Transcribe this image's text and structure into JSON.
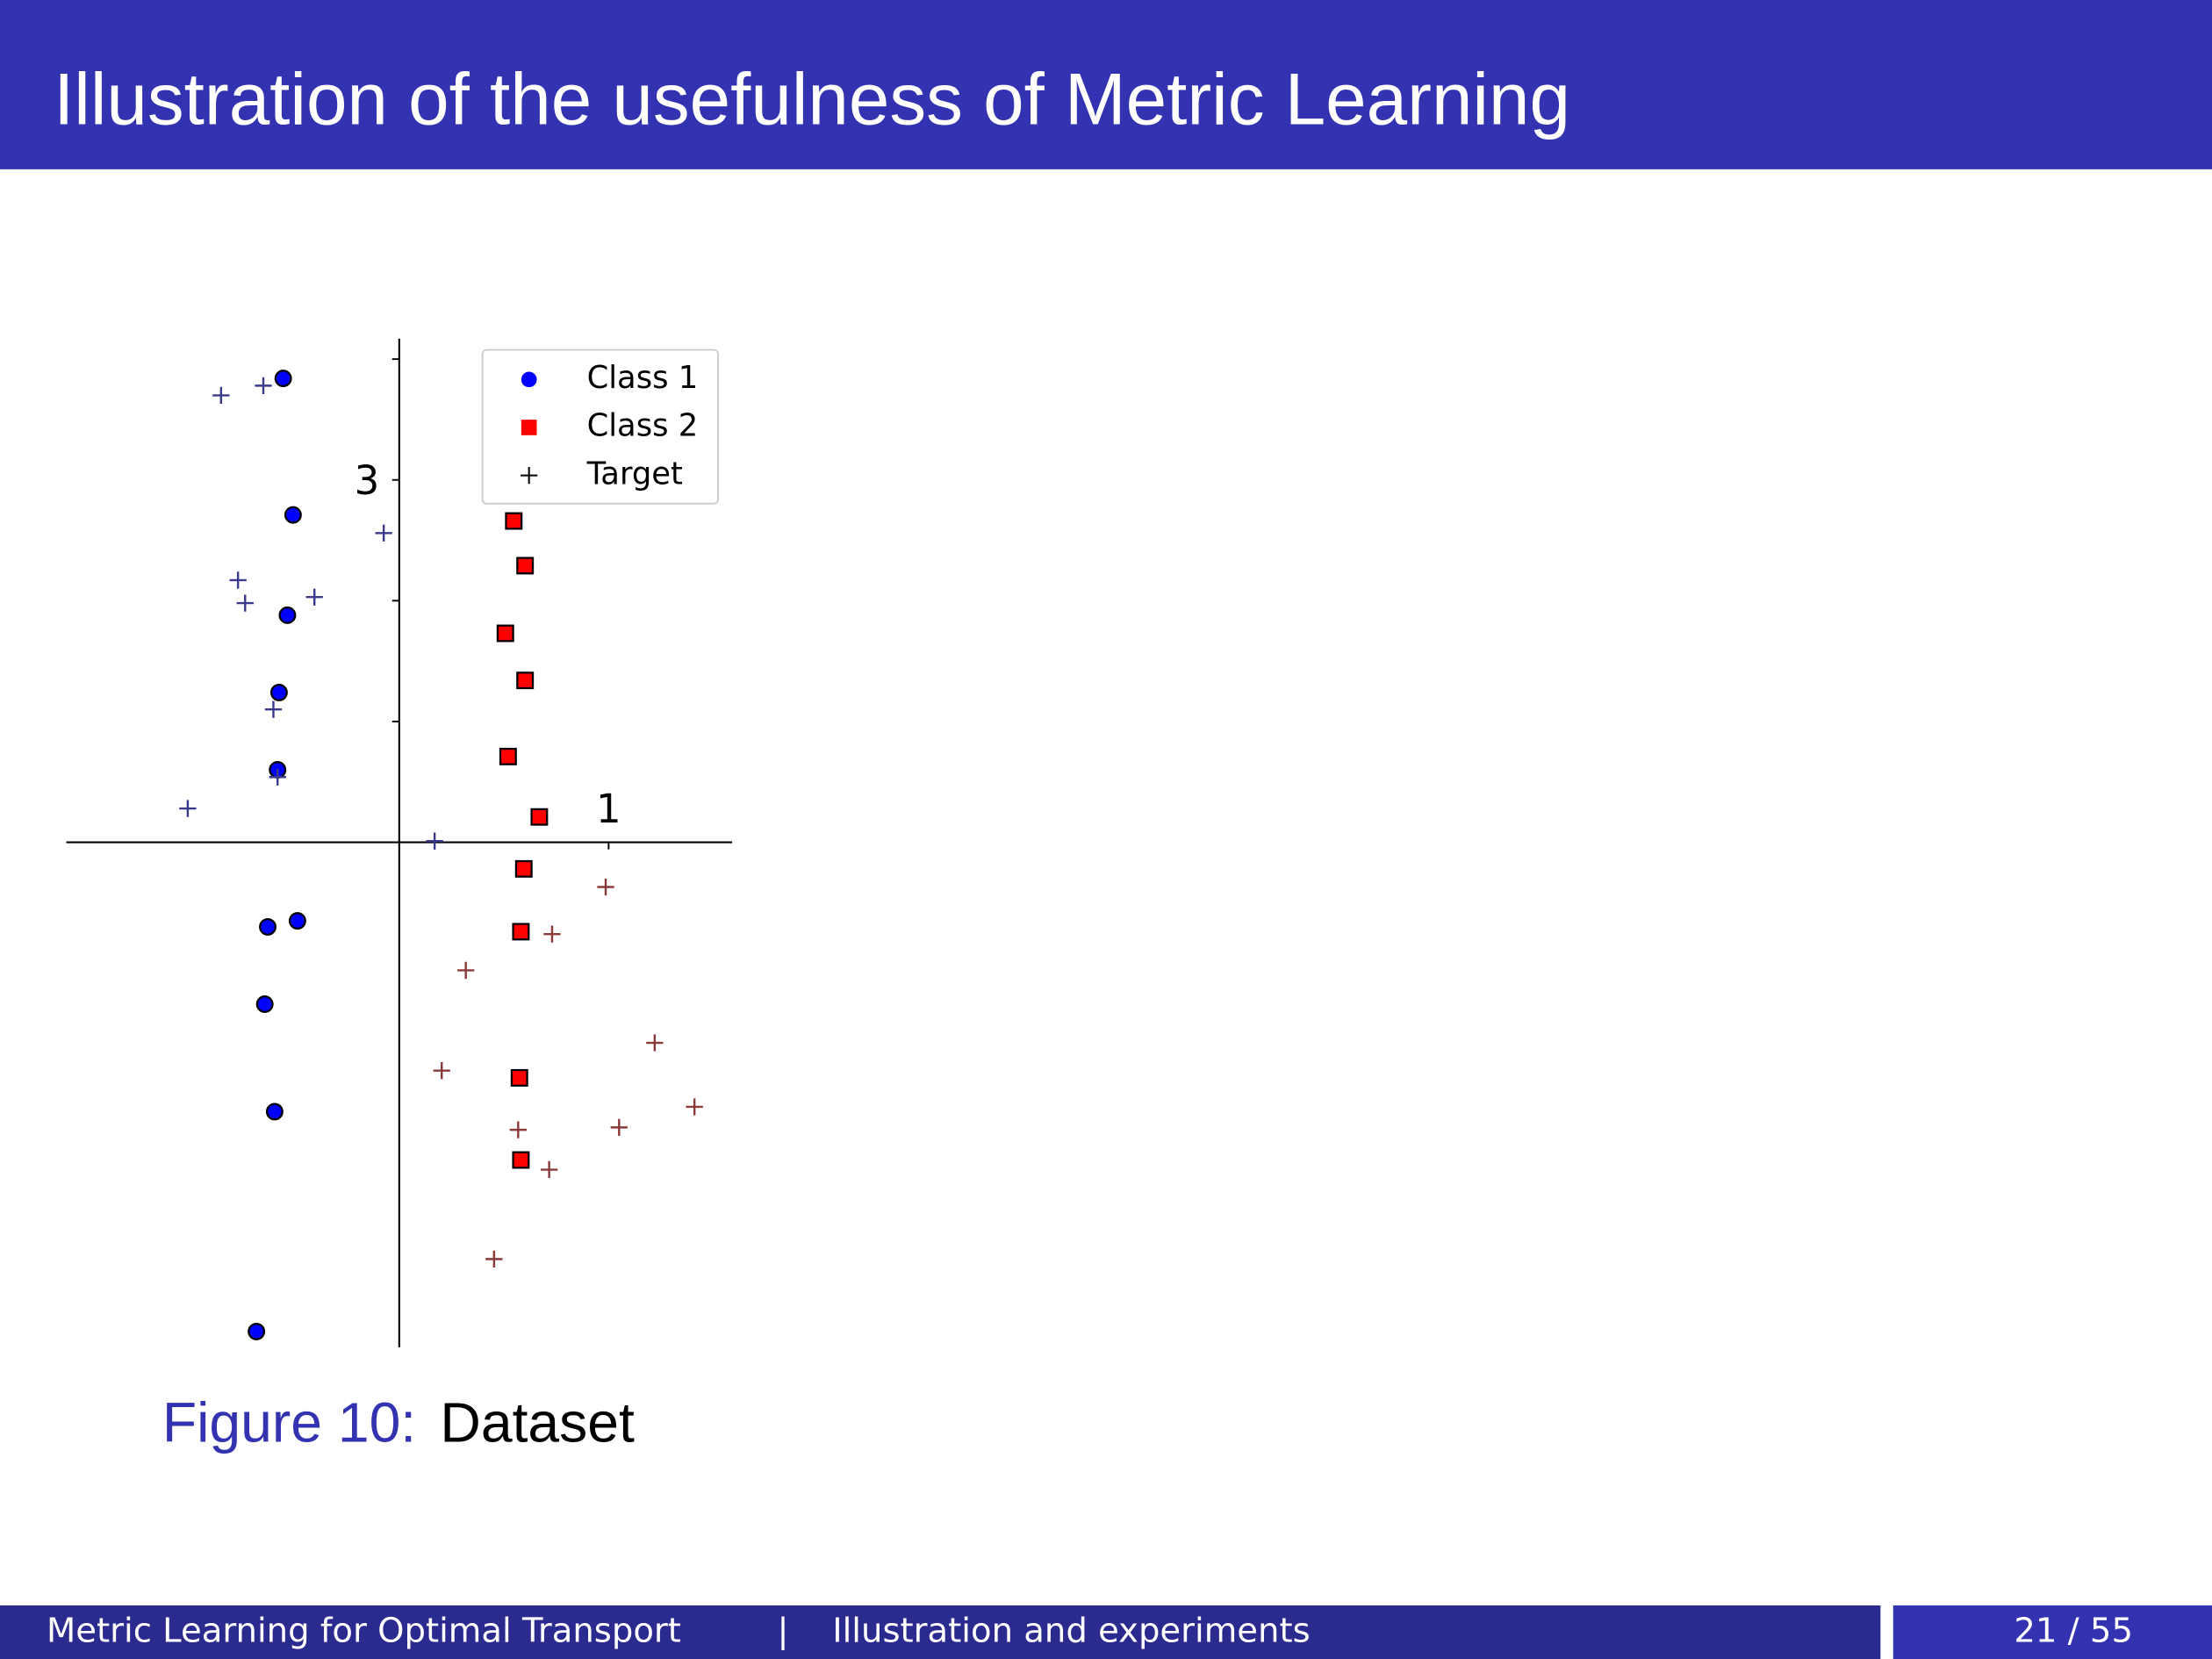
{
  "slide": {
    "title": "Illustration of the usefulness of Metric Learning",
    "caption_label": "Figure 10:",
    "caption_text": "Dataset",
    "footer_left": "Metric Learning for Optimal Transport",
    "footer_separator": "|",
    "footer_section": "Illustration and experiments",
    "footer_page": "21 / 55"
  },
  "chart_data": {
    "type": "scatter",
    "xlim": [
      -1.59,
      1.59
    ],
    "ylim": [
      -4.18,
      4.17
    ],
    "xticks": [
      1
    ],
    "yticks": [
      {
        "value": 1,
        "label": null
      },
      {
        "value": 2,
        "label": null
      },
      3,
      {
        "value": 4,
        "label": null
      }
    ],
    "legend": "upper right",
    "series": [
      {
        "name": "Class 1",
        "color": "#0000ff",
        "marker": "circle",
        "x": [
          -0.554,
          -0.507,
          -0.534,
          -0.574,
          -0.581,
          -0.628,
          -0.486,
          -0.642,
          -0.595,
          -0.682
        ],
        "values": [
          3.84,
          2.71,
          1.88,
          1.24,
          0.6,
          -0.7,
          -0.65,
          -1.34,
          -2.23,
          -4.05
        ]
      },
      {
        "name": "Class 2",
        "color": "#ff0000",
        "marker": "square",
        "x": [
          0.547,
          0.601,
          0.507,
          0.601,
          0.52,
          0.669,
          0.595,
          0.581,
          0.574,
          0.581
        ],
        "values": [
          2.66,
          2.29,
          1.73,
          1.34,
          0.71,
          0.21,
          -0.22,
          -0.74,
          -1.95,
          -2.63
        ]
      },
      {
        "name": "Target",
        "color": "#000000",
        "marker": "plus",
        "point_colors": [
          "#3a3a8c",
          "#3a3a8c",
          "#3a3a8c",
          "#3a3a8c",
          "#3a3a8c",
          "#3a3a8c",
          "#3a3a8c",
          "#3a3a8c",
          "#3a3a8c",
          "#3a3a8c",
          "#8b3a3a",
          "#8b3a3a",
          "#8b3a3a",
          "#8b3a3a",
          "#8b3a3a",
          "#8b3a3a",
          "#8b3a3a",
          "#8b3a3a",
          "#8b3a3a",
          "#8b3a3a"
        ],
        "x": [
          -0.851,
          -0.649,
          -0.074,
          -0.77,
          -0.736,
          -0.405,
          -0.601,
          -0.581,
          -1.01,
          0.169,
          0.986,
          0.73,
          0.318,
          1.22,
          0.203,
          1.41,
          0.568,
          1.05,
          0.716,
          0.453
        ],
        "values": [
          3.7,
          3.78,
          2.56,
          2.17,
          1.98,
          2.03,
          1.1,
          0.54,
          0.28,
          0.01,
          -0.37,
          -0.76,
          -1.06,
          -1.66,
          -1.89,
          -2.19,
          -2.38,
          -2.36,
          -2.71,
          -3.45
        ]
      }
    ]
  }
}
